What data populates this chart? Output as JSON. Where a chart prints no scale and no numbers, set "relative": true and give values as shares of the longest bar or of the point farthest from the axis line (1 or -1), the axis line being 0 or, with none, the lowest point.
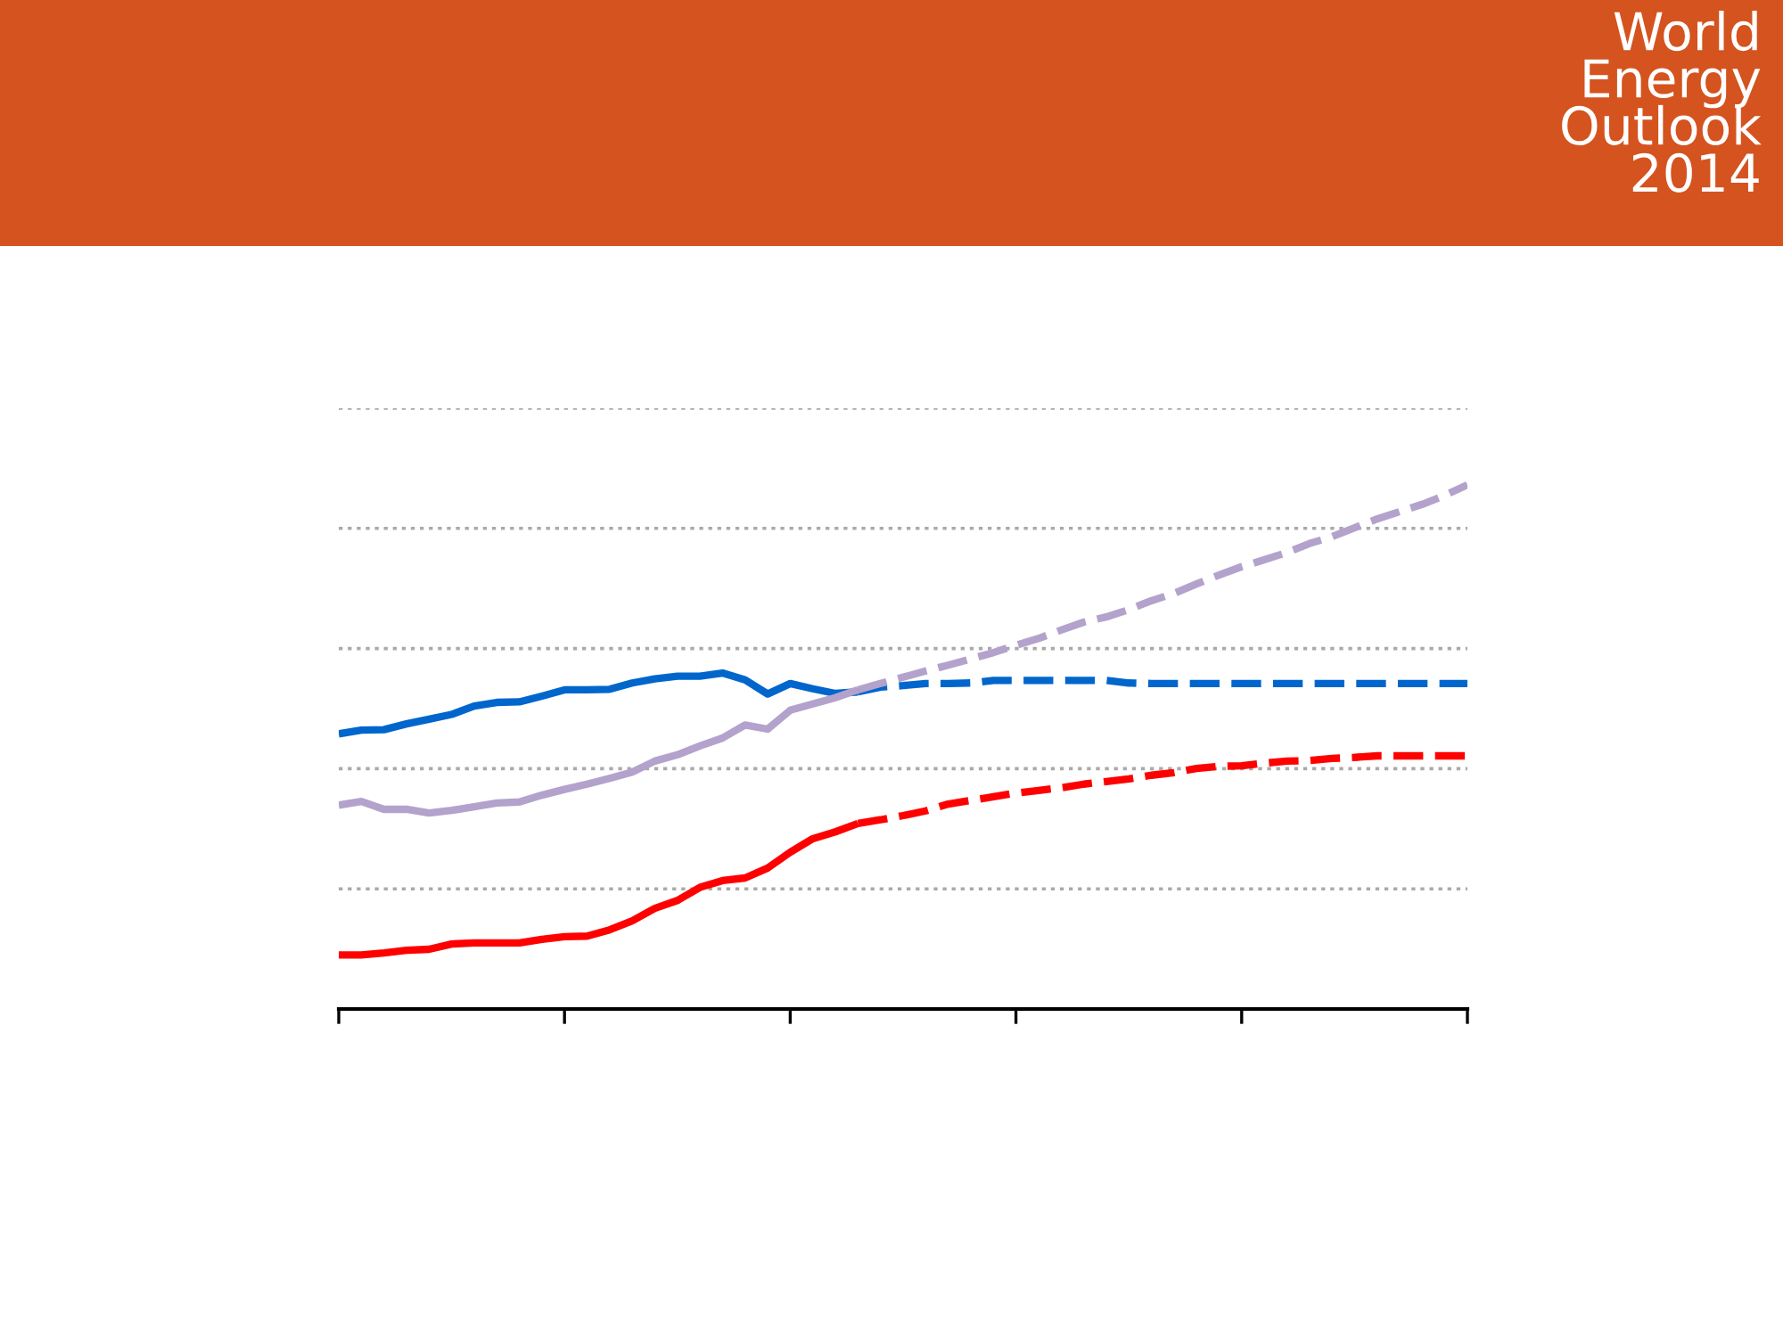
{
  "chart_data": {
    "type": "line",
    "title": "World Energy Outlook 2014",
    "relative": true,
    "grid": "y",
    "categories": [
      null,
      null,
      null,
      null,
      null,
      null,
      null,
      null,
      null,
      null,
      null,
      null,
      null,
      null,
      null,
      null,
      null,
      null,
      null,
      null,
      null,
      null,
      null,
      null,
      null,
      null,
      null,
      null,
      null,
      null,
      null,
      null,
      null,
      null,
      null,
      null,
      null,
      null,
      null,
      null,
      null,
      null,
      null,
      null,
      null,
      null,
      null,
      null,
      null,
      null,
      null
    ],
    "series": [
      {
        "color": "#0066cc",
        "line_style": "solid",
        "values": [
          0.525,
          0.532,
          0.533,
          0.544,
          0.553,
          0.562,
          0.578,
          0.585,
          0.586,
          0.597,
          0.609,
          0.609,
          0.61,
          0.622,
          0.63,
          0.635,
          0.635,
          0.641,
          0.628,
          0.601,
          0.621,
          0.611,
          0.602,
          0.605,
          null,
          null,
          null,
          null,
          null,
          null,
          null,
          null,
          null,
          null,
          null,
          null,
          null,
          null,
          null,
          null,
          null,
          null,
          null,
          null,
          null,
          null,
          null,
          null,
          null,
          null,
          null
        ]
      },
      {
        "color": "#0066cc",
        "line_style": "dashed",
        "values": [
          null,
          null,
          null,
          null,
          null,
          null,
          null,
          null,
          null,
          null,
          null,
          null,
          null,
          null,
          null,
          null,
          null,
          null,
          null,
          null,
          null,
          null,
          null,
          0.605,
          0.614,
          0.617,
          0.621,
          0.621,
          0.622,
          0.627,
          0.627,
          0.627,
          0.627,
          0.627,
          0.627,
          0.622,
          0.621,
          0.621,
          0.621,
          0.621,
          0.621,
          0.621,
          0.621,
          0.621,
          0.621,
          0.621,
          0.621,
          0.621,
          0.621,
          0.621,
          0.621
        ]
      },
      {
        "color": "#b3a2cc",
        "line_style": "solid",
        "values": [
          0.389,
          0.396,
          0.381,
          0.381,
          0.374,
          0.379,
          0.386,
          0.393,
          0.395,
          0.408,
          0.419,
          0.429,
          0.44,
          0.452,
          0.473,
          0.485,
          0.502,
          0.517,
          0.542,
          0.534,
          0.57,
          0.582,
          0.594,
          0.609,
          null,
          null,
          null,
          null,
          null,
          null,
          null,
          null,
          null,
          null,
          null,
          null,
          null,
          null,
          null,
          null,
          null,
          null,
          null,
          null,
          null,
          null,
          null,
          null,
          null,
          null,
          null
        ]
      },
      {
        "color": "#b3a2cc",
        "line_style": "dashed",
        "values": [
          null,
          null,
          null,
          null,
          null,
          null,
          null,
          null,
          null,
          null,
          null,
          null,
          null,
          null,
          null,
          null,
          null,
          null,
          null,
          null,
          null,
          null,
          null,
          0.609,
          0.621,
          0.633,
          0.645,
          0.656,
          0.668,
          0.68,
          0.694,
          0.707,
          0.723,
          0.738,
          0.748,
          0.762,
          0.779,
          0.793,
          0.811,
          0.828,
          0.844,
          0.857,
          0.871,
          0.888,
          0.901,
          0.918,
          0.935,
          0.949,
          0.963,
          0.98,
          1
        ]
      },
      {
        "color": "#ff0000",
        "line_style": "solid",
        "values": [
          0.103,
          0.103,
          0.107,
          0.112,
          0.114,
          0.124,
          0.126,
          0.126,
          0.126,
          0.133,
          0.138,
          0.139,
          0.151,
          0.168,
          0.192,
          0.207,
          0.232,
          0.245,
          0.25,
          0.269,
          0.299,
          0.325,
          0.338,
          0.354,
          null,
          null,
          null,
          null,
          null,
          null,
          null,
          null,
          null,
          null,
          null,
          null,
          null,
          null,
          null,
          null,
          null,
          null,
          null,
          null,
          null,
          null,
          null,
          null,
          null,
          null,
          null
        ]
      },
      {
        "color": "#ff0000",
        "line_style": "dashed",
        "values": [
          null,
          null,
          null,
          null,
          null,
          null,
          null,
          null,
          null,
          null,
          null,
          null,
          null,
          null,
          null,
          null,
          null,
          null,
          null,
          null,
          null,
          null,
          null,
          0.354,
          0.361,
          0.369,
          0.378,
          0.391,
          0.398,
          0.405,
          0.412,
          0.417,
          0.422,
          0.429,
          0.434,
          0.439,
          0.446,
          0.451,
          0.459,
          0.463,
          0.464,
          0.469,
          0.473,
          0.474,
          0.478,
          0.48,
          0.483,
          0.483,
          0.483,
          0.483,
          0.483
        ]
      }
    ]
  }
}
